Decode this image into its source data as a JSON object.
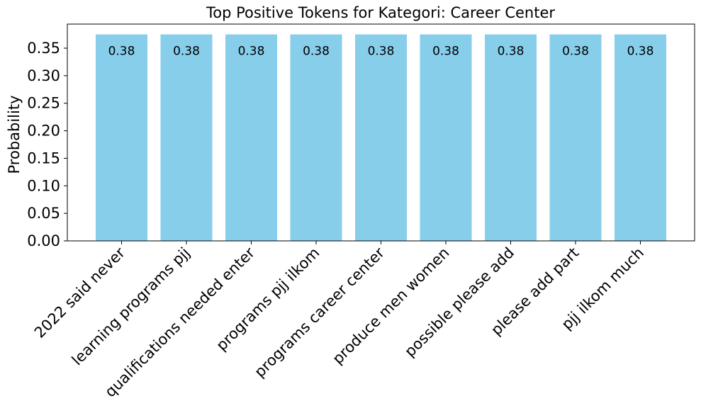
{
  "chart_data": {
    "type": "bar",
    "title": "Top Positive Tokens for Kategori: Career Center",
    "xlabel": "",
    "ylabel": "Probability",
    "categories": [
      "2022 said never",
      "learning programs pjj",
      "qualifications needed enter",
      "programs pjj ilkom",
      "programs career center",
      "produce men women",
      "possible please add",
      "please add part",
      "pjj ilkom much"
    ],
    "values": [
      0.375,
      0.375,
      0.375,
      0.375,
      0.375,
      0.375,
      0.375,
      0.375,
      0.375
    ],
    "data_labels": [
      "0.38",
      "0.38",
      "0.38",
      "0.38",
      "0.38",
      "0.38",
      "0.38",
      "0.38",
      "0.38"
    ],
    "ylim": [
      0,
      0.39375
    ],
    "yticks": [
      0.0,
      0.05,
      0.1,
      0.15,
      0.2,
      0.25,
      0.3,
      0.35
    ],
    "ytick_labels": [
      "0.00",
      "0.05",
      "0.10",
      "0.15",
      "0.20",
      "0.25",
      "0.30",
      "0.35"
    ],
    "bar_color": "#87CEEB",
    "grid": false,
    "legend": "none"
  }
}
